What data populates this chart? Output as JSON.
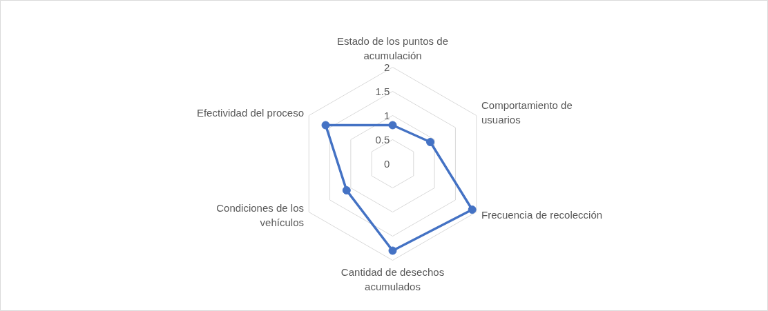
{
  "chart_data": {
    "type": "radar",
    "categories": [
      "Estado de los puntos de acumulación",
      "Comportamiento de usuarios",
      "Frecuencia de recolección",
      "Cantidad de desechos acumulados",
      "Condiciones de los vehículos",
      "Efectividad del proceso"
    ],
    "series": [
      {
        "color": "#4472c4",
        "values": [
          0.8,
          0.9,
          1.9,
          1.8,
          1.1,
          1.6
        ]
      }
    ],
    "ylim": [
      0,
      2
    ],
    "yticks": [
      0,
      0.5,
      1,
      1.5,
      2
    ],
    "grid": true,
    "marker": "circle",
    "line_style": "solid"
  }
}
